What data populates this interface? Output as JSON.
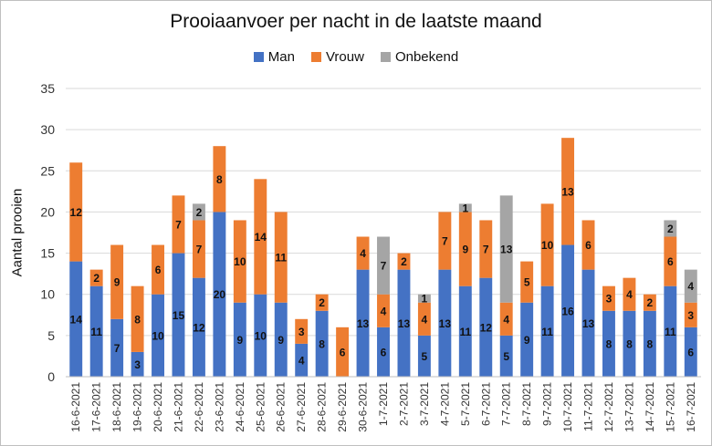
{
  "chart_data": {
    "type": "bar",
    "stacked": true,
    "title": "Prooiaanvoer per nacht in de laatste maand",
    "xlabel": "",
    "ylabel": "Aantal prooien",
    "ylim": [
      0,
      35
    ],
    "yticks": [
      0,
      5,
      10,
      15,
      20,
      25,
      30,
      35
    ],
    "grid": true,
    "legend_position": "top",
    "categories": [
      "16-6-2021",
      "17-6-2021",
      "18-6-2021",
      "19-6-2021",
      "20-6-2021",
      "21-6-2021",
      "22-6-2021",
      "23-6-2021",
      "24-6-2021",
      "25-6-2021",
      "26-6-2021",
      "27-6-2021",
      "28-6-2021",
      "29-6-2021",
      "30-6-2021",
      "1-7-2021",
      "2-7-2021",
      "3-7-2021",
      "4-7-2021",
      "5-7-2021",
      "6-7-2021",
      "7-7-2021",
      "8-7-2021",
      "9-7-2021",
      "10-7-2021",
      "11-7-2021",
      "12-7-2021",
      "13-7-2021",
      "14-7-2021",
      "15-7-2021",
      "16-7-2021"
    ],
    "series": [
      {
        "name": "Man",
        "color": "#4472c4",
        "values": [
          14,
          11,
          7,
          3,
          10,
          15,
          12,
          20,
          9,
          10,
          9,
          4,
          8,
          0,
          13,
          6,
          13,
          5,
          13,
          11,
          12,
          5,
          9,
          11,
          16,
          13,
          8,
          8,
          8,
          11,
          6
        ]
      },
      {
        "name": "Vrouw",
        "color": "#ed7d31",
        "values": [
          12,
          2,
          9,
          8,
          6,
          7,
          7,
          8,
          10,
          14,
          11,
          3,
          2,
          6,
          4,
          4,
          2,
          4,
          7,
          9,
          7,
          4,
          5,
          10,
          13,
          6,
          3,
          4,
          2,
          6,
          3
        ]
      },
      {
        "name": "Onbekend",
        "color": "#a5a5a5",
        "values": [
          0,
          0,
          0,
          0,
          0,
          0,
          2,
          0,
          0,
          0,
          0,
          0,
          0,
          0,
          0,
          7,
          0,
          1,
          0,
          1,
          0,
          13,
          0,
          0,
          0,
          0,
          0,
          0,
          0,
          2,
          4
        ]
      }
    ]
  }
}
